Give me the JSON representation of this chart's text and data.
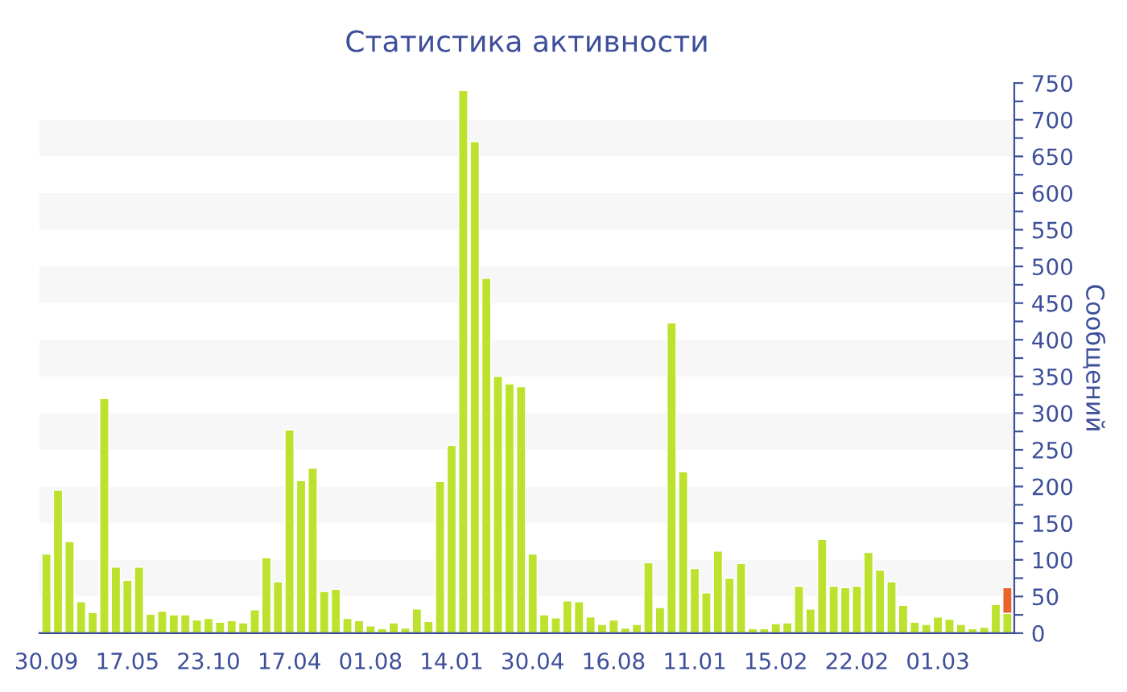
{
  "chart_data": {
    "type": "bar",
    "title": "Статистика активности",
    "y2label": "Сообщений",
    "categories": [
      "30.09",
      null,
      null,
      null,
      null,
      null,
      null,
      "17.05",
      null,
      null,
      null,
      null,
      null,
      null,
      "23.10",
      null,
      null,
      null,
      null,
      null,
      null,
      "17.04",
      null,
      null,
      null,
      null,
      null,
      null,
      "01.08",
      null,
      null,
      null,
      null,
      null,
      null,
      "14.01",
      null,
      null,
      null,
      null,
      null,
      null,
      "30.04",
      null,
      null,
      null,
      null,
      null,
      null,
      "16.08",
      null,
      null,
      null,
      null,
      null,
      null,
      "11.01",
      null,
      null,
      null,
      null,
      null,
      null,
      "15.02",
      null,
      null,
      null,
      null,
      null,
      null,
      "22.02",
      null,
      null,
      null,
      null,
      null,
      null,
      "01.03",
      null,
      null,
      null,
      null,
      null,
      null
    ],
    "stacked": true,
    "series": [
      {
        "color": "#bde22e",
        "axis": "y2",
        "values": [
          108,
          195,
          125,
          43,
          28,
          320,
          90,
          72,
          90,
          26,
          30,
          25,
          25,
          18,
          20,
          15,
          17,
          14,
          32,
          103,
          70,
          277,
          208,
          225,
          57,
          60,
          20,
          17,
          10,
          6,
          14,
          7,
          33,
          16,
          207,
          256,
          740,
          670,
          484,
          350,
          340,
          336,
          108,
          25,
          21,
          44,
          43,
          22,
          12,
          18,
          7,
          12,
          96,
          35,
          423,
          220,
          88,
          55,
          112,
          75,
          95,
          6,
          6,
          13,
          14,
          64,
          33,
          128,
          64,
          62,
          64,
          110,
          86,
          70,
          38,
          15,
          12,
          22,
          19,
          12,
          6,
          8,
          39,
          27
        ]
      },
      {
        "color": "#e8632b",
        "axis": "y2",
        "values": [
          null,
          null,
          null,
          null,
          null,
          null,
          null,
          null,
          null,
          null,
          null,
          null,
          null,
          null,
          null,
          null,
          null,
          null,
          null,
          null,
          null,
          null,
          null,
          null,
          null,
          null,
          null,
          null,
          null,
          null,
          null,
          null,
          null,
          null,
          null,
          null,
          null,
          null,
          null,
          null,
          null,
          null,
          null,
          null,
          null,
          null,
          null,
          null,
          null,
          null,
          null,
          null,
          null,
          null,
          null,
          null,
          null,
          null,
          null,
          null,
          null,
          null,
          null,
          null,
          null,
          null,
          null,
          null,
          null,
          null,
          null,
          null,
          null,
          null,
          null,
          null,
          null,
          null,
          null,
          null,
          null,
          null,
          null,
          35
        ]
      }
    ],
    "y2lim": [
      0,
      750
    ],
    "y2ticks": [
      0,
      {
        "value": 25,
        "label": null
      },
      50,
      {
        "value": 75,
        "label": null
      },
      100,
      {
        "value": 125,
        "label": null
      },
      150,
      {
        "value": 175,
        "label": null
      },
      200,
      {
        "value": 225,
        "label": null
      },
      250,
      {
        "value": 275,
        "label": null
      },
      300,
      {
        "value": 325,
        "label": null
      },
      350,
      {
        "value": 375,
        "label": null
      },
      400,
      {
        "value": 425,
        "label": null
      },
      450,
      {
        "value": 475,
        "label": null
      },
      500,
      {
        "value": 525,
        "label": null
      },
      550,
      {
        "value": 575,
        "label": null
      },
      600,
      {
        "value": 625,
        "label": null
      },
      650,
      {
        "value": 675,
        "label": null
      },
      700,
      {
        "value": 725,
        "label": null
      },
      750
    ],
    "bands": [
      {
        "axis": "y2",
        "from": 50,
        "to": 100,
        "color": "#f7f7f7"
      },
      {
        "axis": "y2",
        "from": 150,
        "to": 200,
        "color": "#f7f7f7"
      },
      {
        "axis": "y2",
        "from": 250,
        "to": 300,
        "color": "#f7f7f7"
      },
      {
        "axis": "y2",
        "from": 350,
        "to": 400,
        "color": "#f7f7f7"
      },
      {
        "axis": "y2",
        "from": 450,
        "to": 500,
        "color": "#f7f7f7"
      },
      {
        "axis": "y2",
        "from": 550,
        "to": 600,
        "color": "#f7f7f7"
      },
      {
        "axis": "y2",
        "from": 650,
        "to": 700,
        "color": "#f7f7f7"
      }
    ]
  }
}
